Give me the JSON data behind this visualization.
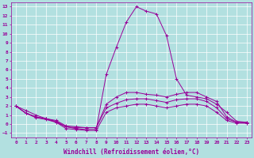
{
  "background_color": "#b2e0e0",
  "grid_color": "#ffffff",
  "line_color": "#990099",
  "marker": "+",
  "xlabel": "Windchill (Refroidissement éolien,°C)",
  "xlabel_fontsize": 5.5,
  "ylim": [
    -1.5,
    13.5
  ],
  "xlim": [
    -0.5,
    23.5
  ],
  "yticks": [
    -1,
    0,
    1,
    2,
    3,
    4,
    5,
    6,
    7,
    8,
    9,
    10,
    11,
    12,
    13
  ],
  "xticks": [
    0,
    1,
    2,
    3,
    4,
    5,
    6,
    7,
    8,
    9,
    10,
    11,
    12,
    13,
    14,
    15,
    16,
    17,
    18,
    19,
    20,
    21,
    22,
    23
  ],
  "series": [
    {
      "x": [
        0,
        1,
        2,
        3,
        4,
        5,
        6,
        7,
        8,
        9,
        10,
        11,
        12,
        13,
        14,
        15,
        16,
        17,
        18,
        19,
        20,
        21,
        22,
        23
      ],
      "y": [
        2.0,
        1.5,
        1.0,
        0.6,
        0.2,
        -0.3,
        -0.5,
        -0.6,
        -0.6,
        5.5,
        8.5,
        11.3,
        13.0,
        12.5,
        12.2,
        9.8,
        5.0,
        3.2,
        3.0,
        2.8,
        2.2,
        1.3,
        0.3,
        0.2
      ]
    },
    {
      "x": [
        0,
        1,
        2,
        3,
        4,
        5,
        6,
        7,
        8,
        9,
        10,
        11,
        12,
        13,
        14,
        15,
        16,
        17,
        18,
        19,
        20,
        21,
        22,
        23
      ],
      "y": [
        2.0,
        1.2,
        0.8,
        0.6,
        0.4,
        -0.2,
        -0.3,
        -0.4,
        -0.4,
        2.2,
        3.0,
        3.5,
        3.5,
        3.3,
        3.2,
        3.0,
        3.3,
        3.5,
        3.5,
        3.0,
        2.5,
        0.8,
        0.2,
        0.2
      ]
    },
    {
      "x": [
        0,
        1,
        2,
        3,
        4,
        5,
        6,
        7,
        8,
        9,
        10,
        11,
        12,
        13,
        14,
        15,
        16,
        17,
        18,
        19,
        20,
        21,
        22,
        23
      ],
      "y": [
        2.0,
        1.2,
        0.8,
        0.6,
        0.3,
        -0.3,
        -0.4,
        -0.4,
        -0.4,
        1.8,
        2.3,
        2.7,
        2.8,
        2.8,
        2.6,
        2.4,
        2.7,
        2.8,
        2.8,
        2.5,
        1.8,
        0.6,
        0.2,
        0.1
      ]
    },
    {
      "x": [
        0,
        1,
        2,
        3,
        4,
        5,
        6,
        7,
        8,
        9,
        10,
        11,
        12,
        13,
        14,
        15,
        16,
        17,
        18,
        19,
        20,
        21,
        22,
        23
      ],
      "y": [
        2.0,
        1.2,
        0.7,
        0.5,
        0.2,
        -0.5,
        -0.6,
        -0.7,
        -0.7,
        1.3,
        1.8,
        2.0,
        2.2,
        2.2,
        2.0,
        1.8,
        2.0,
        2.2,
        2.2,
        2.0,
        1.3,
        0.4,
        0.1,
        0.1
      ]
    }
  ]
}
